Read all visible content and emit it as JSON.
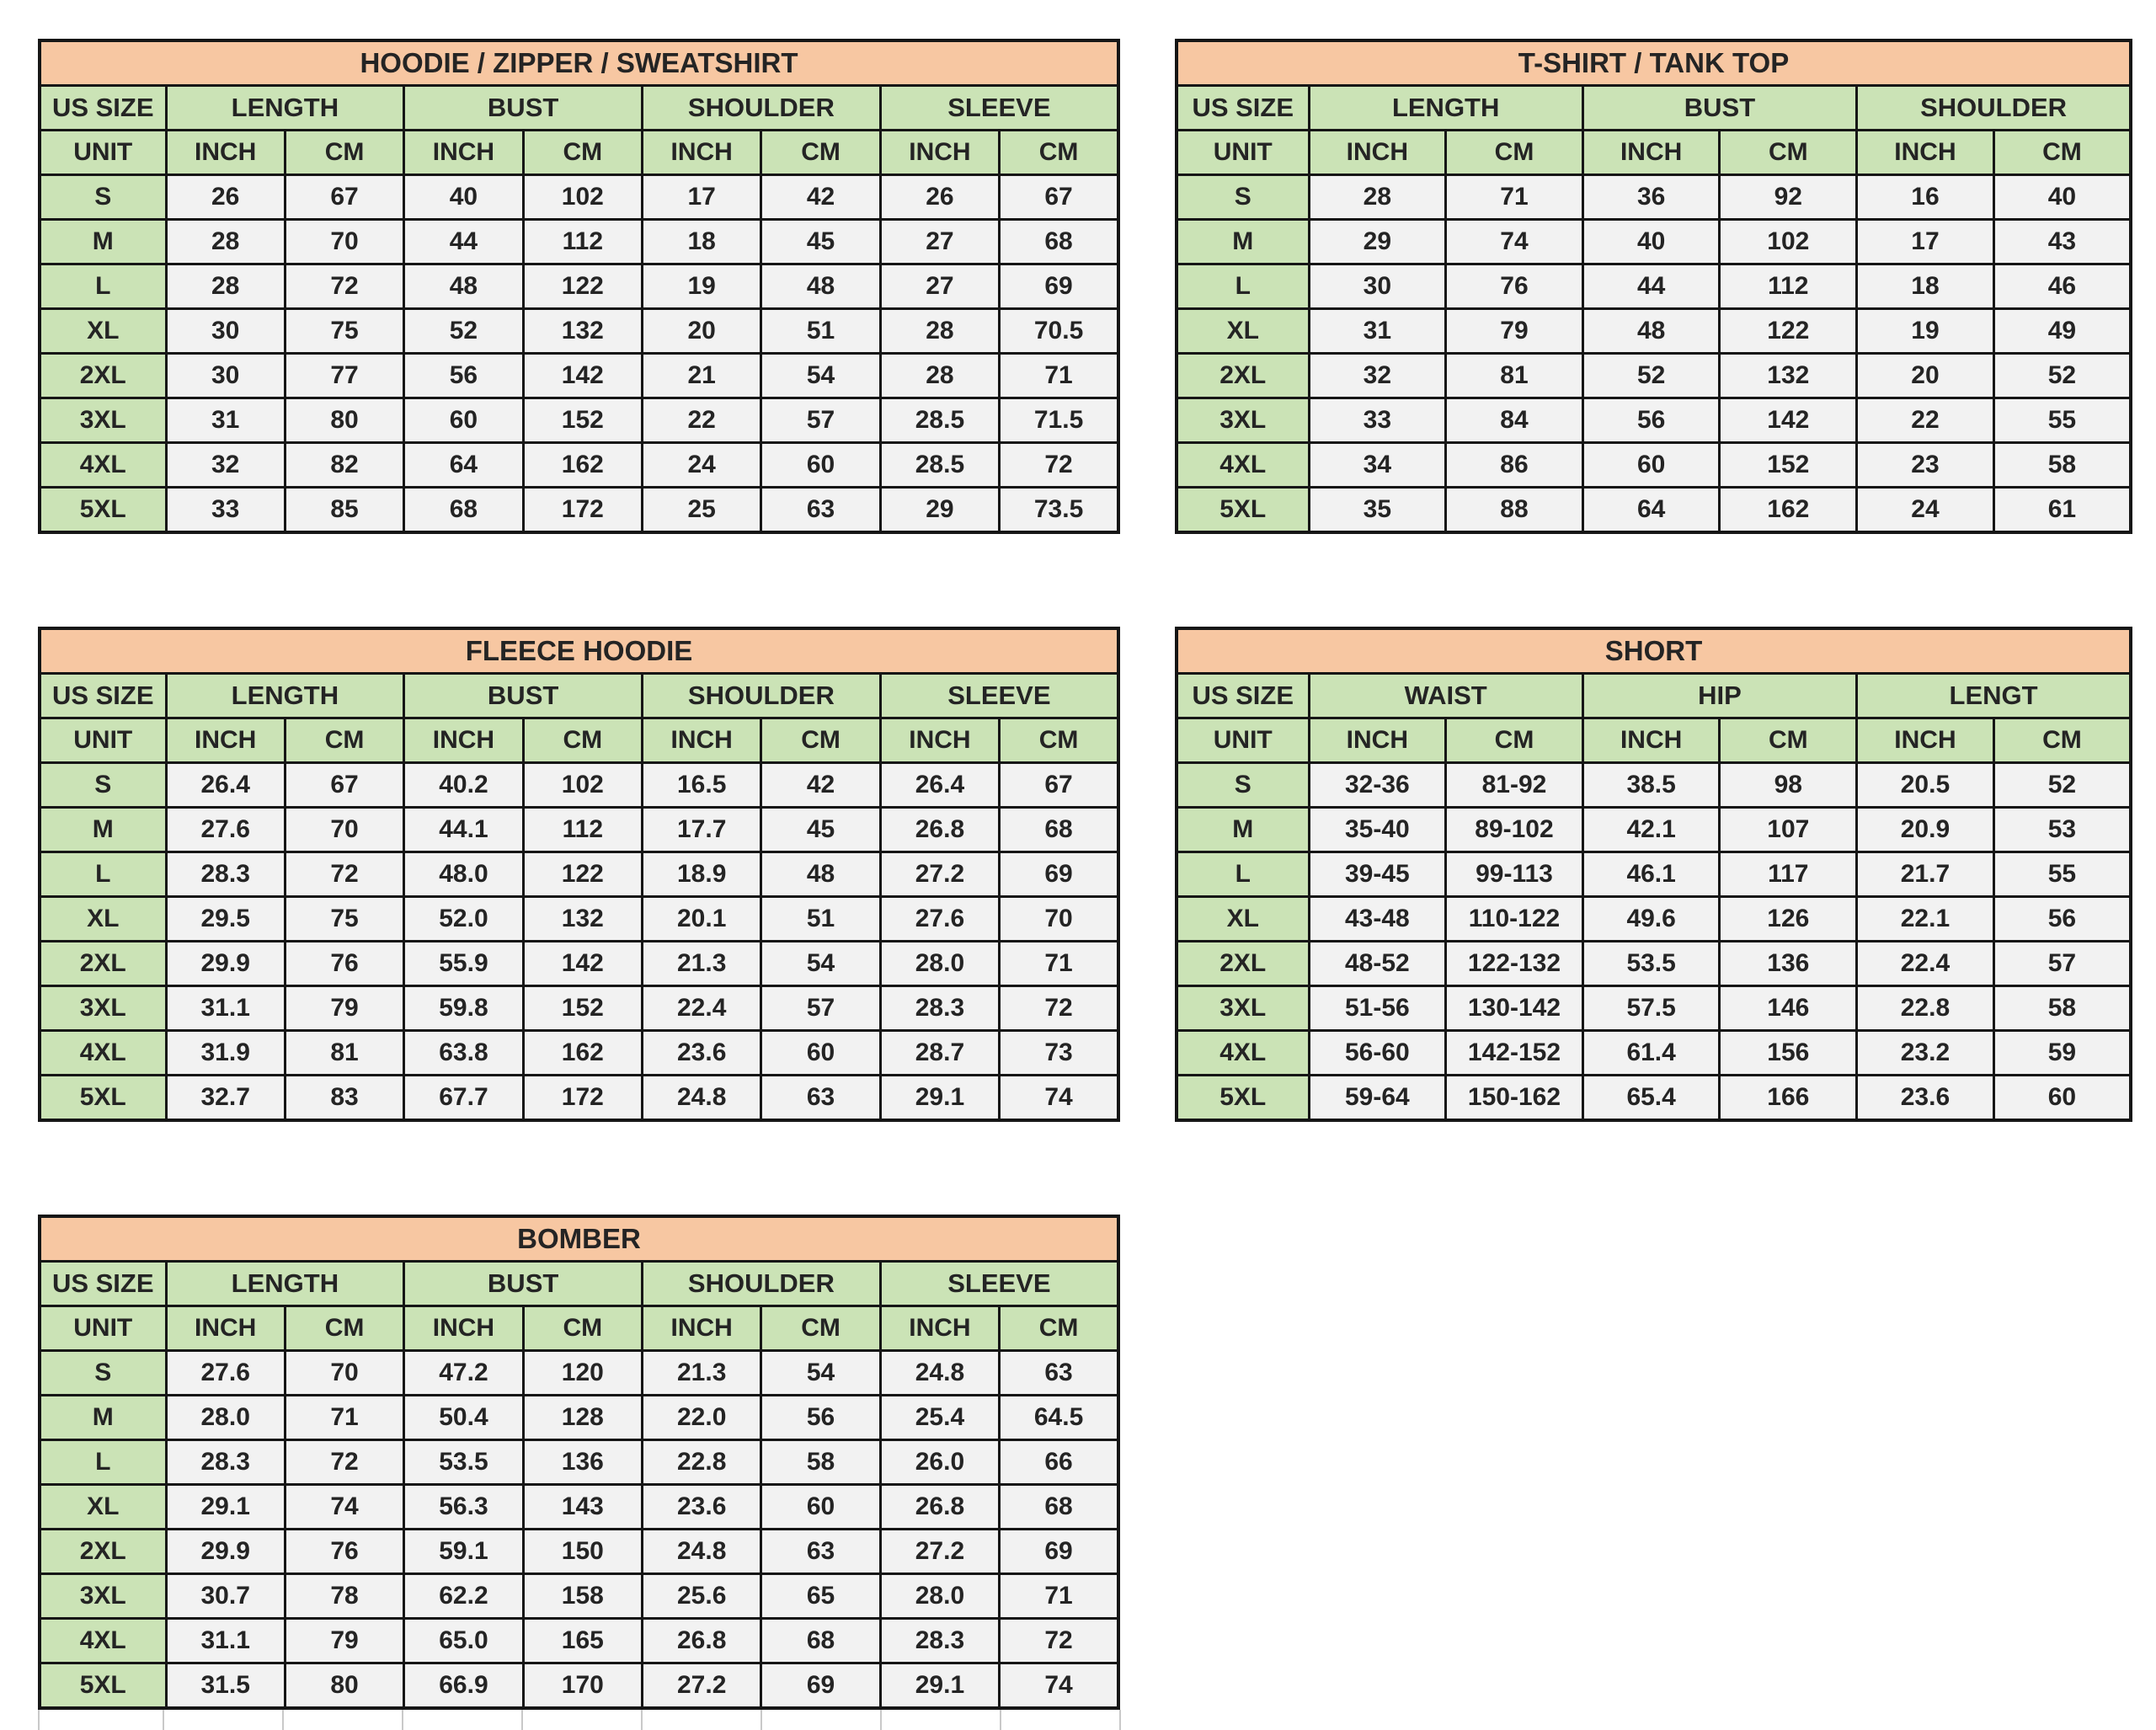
{
  "colors": {
    "title_bg": "#F7C7A2",
    "header_bg": "#CBE3B6",
    "cell_bg": "#F2F2F2",
    "border": "#161616",
    "text": "#242424",
    "page_bg": "#ffffff",
    "ghost_line": "#c9c9c9"
  },
  "shared": {
    "us_size_label": "US SIZE",
    "unit_label": "UNIT",
    "inch_label": "INCH",
    "cm_label": "CM"
  },
  "tables": [
    {
      "id": "hoodie-zipper-sweatshirt",
      "title": "HOODIE / ZIPPER / SWEATSHIRT",
      "layout": "wide",
      "grid_area": "1 / 1",
      "measures": [
        "LENGTH",
        "BUST",
        "SHOULDER",
        "SLEEVE"
      ],
      "sizes": [
        "S",
        "M",
        "L",
        "XL",
        "2XL",
        "3XL",
        "4XL",
        "5XL"
      ],
      "rows": [
        [
          "26",
          "67",
          "40",
          "102",
          "17",
          "42",
          "26",
          "67"
        ],
        [
          "28",
          "70",
          "44",
          "112",
          "18",
          "45",
          "27",
          "68"
        ],
        [
          "28",
          "72",
          "48",
          "122",
          "19",
          "48",
          "27",
          "69"
        ],
        [
          "30",
          "75",
          "52",
          "132",
          "20",
          "51",
          "28",
          "70.5"
        ],
        [
          "30",
          "77",
          "56",
          "142",
          "21",
          "54",
          "28",
          "71"
        ],
        [
          "31",
          "80",
          "60",
          "152",
          "22",
          "57",
          "28.5",
          "71.5"
        ],
        [
          "32",
          "82",
          "64",
          "162",
          "24",
          "60",
          "28.5",
          "72"
        ],
        [
          "33",
          "85",
          "68",
          "172",
          "25",
          "63",
          "29",
          "73.5"
        ]
      ]
    },
    {
      "id": "tshirt-tanktop",
      "title": "T-SHIRT / TANK TOP",
      "layout": "narrow",
      "grid_area": "1 / 2",
      "measures": [
        "LENGTH",
        "BUST",
        "SHOULDER"
      ],
      "sizes": [
        "S",
        "M",
        "L",
        "XL",
        "2XL",
        "3XL",
        "4XL",
        "5XL"
      ],
      "rows": [
        [
          "28",
          "71",
          "36",
          "92",
          "16",
          "40"
        ],
        [
          "29",
          "74",
          "40",
          "102",
          "17",
          "43"
        ],
        [
          "30",
          "76",
          "44",
          "112",
          "18",
          "46"
        ],
        [
          "31",
          "79",
          "48",
          "122",
          "19",
          "49"
        ],
        [
          "32",
          "81",
          "52",
          "132",
          "20",
          "52"
        ],
        [
          "33",
          "84",
          "56",
          "142",
          "22",
          "55"
        ],
        [
          "34",
          "86",
          "60",
          "152",
          "23",
          "58"
        ],
        [
          "35",
          "88",
          "64",
          "162",
          "24",
          "61"
        ]
      ]
    },
    {
      "id": "fleece-hoodie",
      "title": "FLEECE HOODIE",
      "layout": "wide",
      "grid_area": "2 / 1",
      "measures": [
        "LENGTH",
        "BUST",
        "SHOULDER",
        "SLEEVE"
      ],
      "sizes": [
        "S",
        "M",
        "L",
        "XL",
        "2XL",
        "3XL",
        "4XL",
        "5XL"
      ],
      "rows": [
        [
          "26.4",
          "67",
          "40.2",
          "102",
          "16.5",
          "42",
          "26.4",
          "67"
        ],
        [
          "27.6",
          "70",
          "44.1",
          "112",
          "17.7",
          "45",
          "26.8",
          "68"
        ],
        [
          "28.3",
          "72",
          "48.0",
          "122",
          "18.9",
          "48",
          "27.2",
          "69"
        ],
        [
          "29.5",
          "75",
          "52.0",
          "132",
          "20.1",
          "51",
          "27.6",
          "70"
        ],
        [
          "29.9",
          "76",
          "55.9",
          "142",
          "21.3",
          "54",
          "28.0",
          "71"
        ],
        [
          "31.1",
          "79",
          "59.8",
          "152",
          "22.4",
          "57",
          "28.3",
          "72"
        ],
        [
          "31.9",
          "81",
          "63.8",
          "162",
          "23.6",
          "60",
          "28.7",
          "73"
        ],
        [
          "32.7",
          "83",
          "67.7",
          "172",
          "24.8",
          "63",
          "29.1",
          "74"
        ]
      ]
    },
    {
      "id": "short",
      "title": "SHORT",
      "layout": "narrow",
      "grid_area": "2 / 2",
      "measures": [
        "WAIST",
        "HIP",
        "LENGT"
      ],
      "sizes": [
        "S",
        "M",
        "L",
        "XL",
        "2XL",
        "3XL",
        "4XL",
        "5XL"
      ],
      "rows": [
        [
          "32-36",
          "81-92",
          "38.5",
          "98",
          "20.5",
          "52"
        ],
        [
          "35-40",
          "89-102",
          "42.1",
          "107",
          "20.9",
          "53"
        ],
        [
          "39-45",
          "99-113",
          "46.1",
          "117",
          "21.7",
          "55"
        ],
        [
          "43-48",
          "110-122",
          "49.6",
          "126",
          "22.1",
          "56"
        ],
        [
          "48-52",
          "122-132",
          "53.5",
          "136",
          "22.4",
          "57"
        ],
        [
          "51-56",
          "130-142",
          "57.5",
          "146",
          "22.8",
          "58"
        ],
        [
          "56-60",
          "142-152",
          "61.4",
          "156",
          "23.2",
          "59"
        ],
        [
          "59-64",
          "150-162",
          "65.4",
          "166",
          "23.6",
          "60"
        ]
      ]
    },
    {
      "id": "bomber",
      "title": "BOMBER",
      "layout": "wide",
      "grid_area": "3 / 1",
      "has_trailing_empty_row": true,
      "measures": [
        "LENGTH",
        "BUST",
        "SHOULDER",
        "SLEEVE"
      ],
      "sizes": [
        "S",
        "M",
        "L",
        "XL",
        "2XL",
        "3XL",
        "4XL",
        "5XL"
      ],
      "rows": [
        [
          "27.6",
          "70",
          "47.2",
          "120",
          "21.3",
          "54",
          "24.8",
          "63"
        ],
        [
          "28.0",
          "71",
          "50.4",
          "128",
          "22.0",
          "56",
          "25.4",
          "64.5"
        ],
        [
          "28.3",
          "72",
          "53.5",
          "136",
          "22.8",
          "58",
          "26.0",
          "66"
        ],
        [
          "29.1",
          "74",
          "56.3",
          "143",
          "23.6",
          "60",
          "26.8",
          "68"
        ],
        [
          "29.9",
          "76",
          "59.1",
          "150",
          "24.8",
          "63",
          "27.2",
          "69"
        ],
        [
          "30.7",
          "78",
          "62.2",
          "158",
          "25.6",
          "65",
          "28.0",
          "71"
        ],
        [
          "31.1",
          "79",
          "65.0",
          "165",
          "26.8",
          "68",
          "28.3",
          "72"
        ],
        [
          "31.5",
          "80",
          "66.9",
          "170",
          "27.2",
          "69",
          "29.1",
          "74"
        ]
      ]
    }
  ]
}
